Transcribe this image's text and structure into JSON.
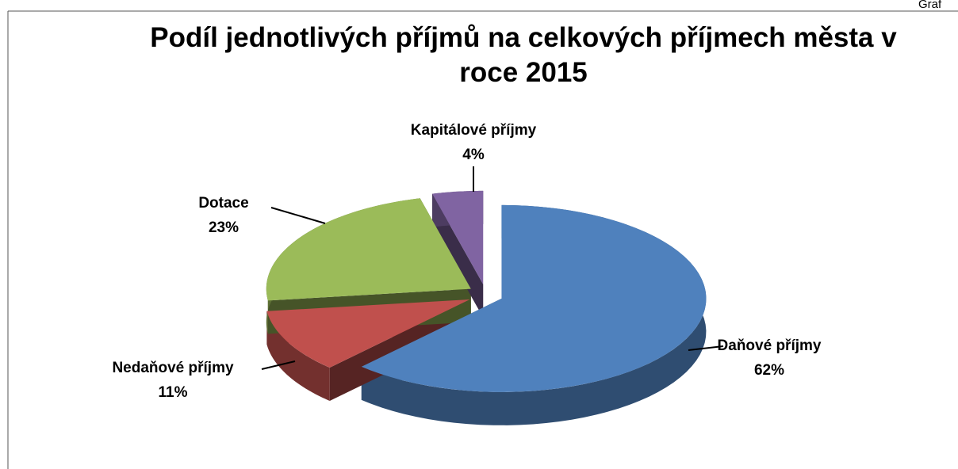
{
  "corner_label": "Graf",
  "chart_data": {
    "type": "pie",
    "title": "Podíl jednotlivých příjmů na celkových příjmech města v roce 2015",
    "categories": [
      "Daňové příjmy",
      "Nedaňové příjmy",
      "Dotace",
      "Kapitálové příjmy"
    ],
    "values": [
      62,
      11,
      23,
      4
    ],
    "value_labels": [
      "62%",
      "11%",
      "23%",
      "4%"
    ],
    "colors": [
      "#4f81bd",
      "#c0504d",
      "#9bbb59",
      "#8064a2"
    ]
  }
}
